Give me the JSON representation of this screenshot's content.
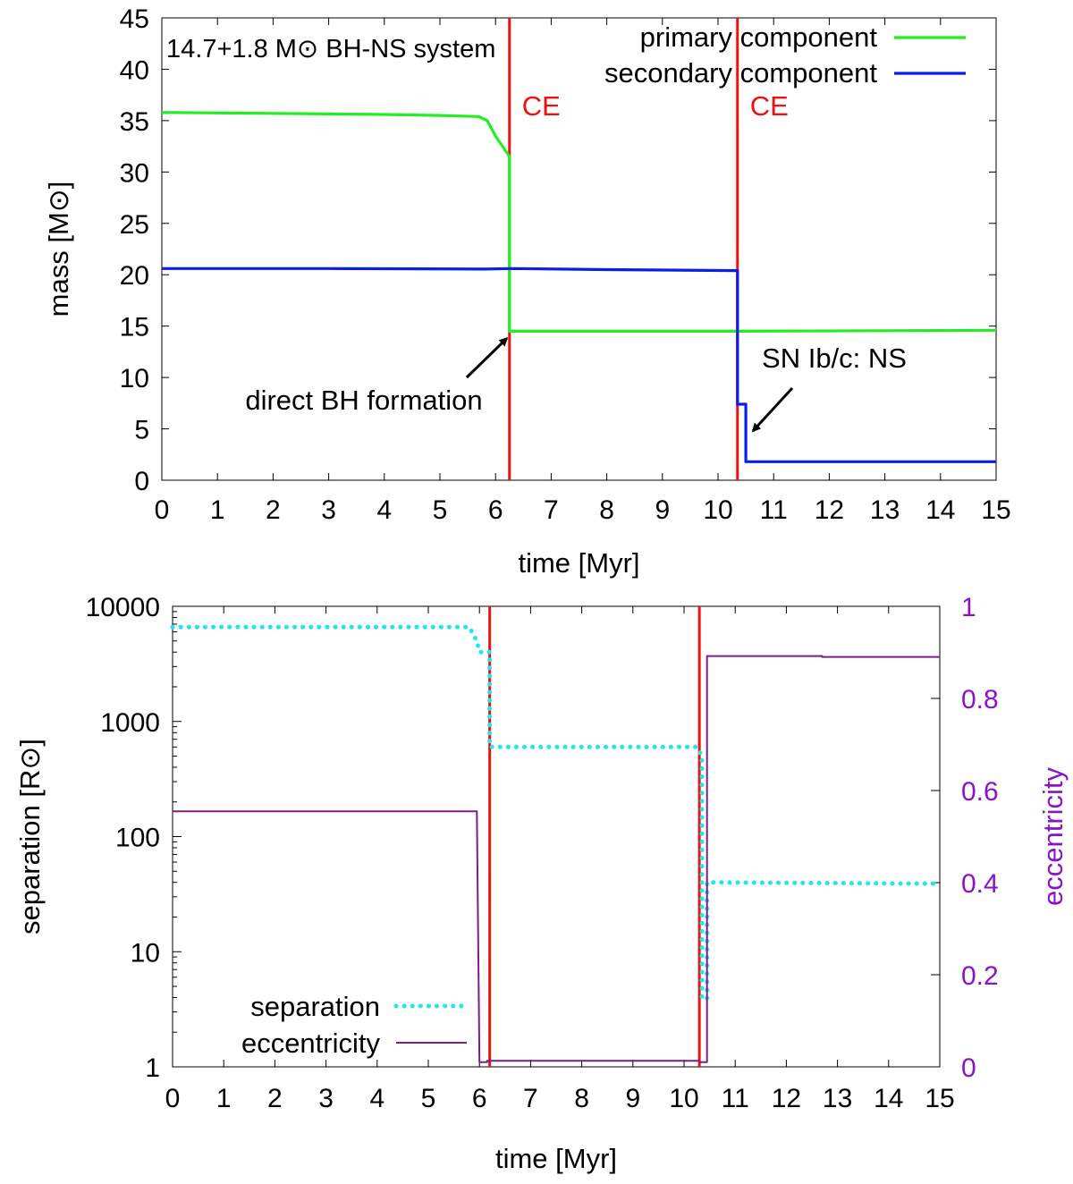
{
  "chart_data": [
    {
      "type": "line",
      "title": "14.7+1.8 M⊙ BH-NS system",
      "xlabel": "time [Myr]",
      "ylabel": "mass [M⊙]",
      "xlim": [
        0,
        15
      ],
      "ylim": [
        0,
        45
      ],
      "x_ticks": [
        0,
        1,
        2,
        3,
        4,
        5,
        6,
        7,
        8,
        9,
        10,
        11,
        12,
        13,
        14,
        15
      ],
      "y_ticks": [
        0,
        5,
        10,
        15,
        20,
        25,
        30,
        35,
        40,
        45
      ],
      "series": [
        {
          "name": "primary component",
          "color": "#22ee22",
          "points": [
            [
              0,
              35.8
            ],
            [
              1,
              35.75
            ],
            [
              2,
              35.7
            ],
            [
              3,
              35.65
            ],
            [
              4,
              35.6
            ],
            [
              5,
              35.5
            ],
            [
              5.7,
              35.4
            ],
            [
              5.85,
              35.0
            ],
            [
              6.0,
              33.5
            ],
            [
              6.25,
              31.5
            ],
            [
              6.25,
              14.5
            ],
            [
              10.4,
              14.5
            ],
            [
              15,
              14.6
            ]
          ]
        },
        {
          "name": "secondary component",
          "color": "#0a1ee6",
          "points": [
            [
              0,
              20.6
            ],
            [
              3,
              20.6
            ],
            [
              5.8,
              20.55
            ],
            [
              6.3,
              20.6
            ],
            [
              8,
              20.5
            ],
            [
              10.35,
              20.4
            ],
            [
              10.35,
              7.4
            ],
            [
              10.5,
              7.4
            ],
            [
              10.5,
              1.8
            ],
            [
              15,
              1.8
            ]
          ]
        }
      ],
      "vlines": [
        {
          "x": 6.25,
          "label": "CE",
          "color": "#ee1111"
        },
        {
          "x": 10.35,
          "label": "CE",
          "color": "#ee1111"
        }
      ],
      "annotations": [
        {
          "text": "direct BH formation",
          "arrow_to": [
            6.25,
            14.5
          ],
          "text_at": [
            3.6,
            10.0
          ]
        },
        {
          "text": "SN Ib/c: NS",
          "arrow_to": [
            10.5,
            4.8
          ],
          "text_at": [
            11.3,
            11.5
          ]
        }
      ]
    },
    {
      "type": "line",
      "xlabel": "time [Myr]",
      "ylabel": "separation [R⊙]",
      "y2label": "eccentricity",
      "xlim": [
        0,
        15
      ],
      "ylim": [
        1,
        10000
      ],
      "yscale": "log",
      "y2lim": [
        0,
        1
      ],
      "x_ticks": [
        0,
        1,
        2,
        3,
        4,
        5,
        6,
        7,
        8,
        9,
        10,
        11,
        12,
        13,
        14,
        15
      ],
      "y_ticks": [
        1,
        10,
        100,
        1000,
        10000
      ],
      "y2_ticks": [
        0,
        0.2,
        0.4,
        0.6,
        0.8,
        1
      ],
      "y2_tick_labels": [
        "0",
        "0.2",
        "0.4",
        "0.6",
        "0.8",
        "1"
      ],
      "series": [
        {
          "name": "separation",
          "color": "#22e5ee",
          "style": "dotted",
          "axis": "left",
          "points": [
            [
              0,
              6600
            ],
            [
              5.8,
              6600
            ],
            [
              5.95,
              5000
            ],
            [
              6.0,
              4000
            ],
            [
              6.2,
              4000
            ],
            [
              6.2,
              600
            ],
            [
              10.25,
              600
            ],
            [
              10.35,
              500
            ],
            [
              10.35,
              3.9
            ],
            [
              10.45,
              3.9
            ],
            [
              10.45,
              40
            ],
            [
              15,
              39
            ]
          ]
        },
        {
          "name": "eccentricity",
          "color": "#7b1e86",
          "style": "solid",
          "axis": "right",
          "points": [
            [
              0,
              0.555
            ],
            [
              5.95,
              0.555
            ],
            [
              6.0,
              0.01
            ],
            [
              6.15,
              0.01
            ],
            [
              6.15,
              0.013
            ],
            [
              10.3,
              0.013
            ],
            [
              10.3,
              0.01
            ],
            [
              10.45,
              0.01
            ],
            [
              10.45,
              0.892
            ],
            [
              12.7,
              0.892
            ],
            [
              12.7,
              0.89
            ],
            [
              15,
              0.89
            ]
          ]
        }
      ],
      "vlines": [
        {
          "x": 6.2,
          "color": "#ee1111"
        },
        {
          "x": 10.3,
          "color": "#ee1111"
        }
      ]
    }
  ]
}
